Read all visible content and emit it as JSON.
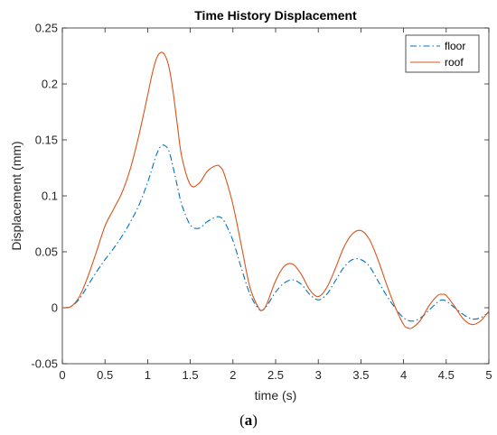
{
  "chart_data": {
    "type": "line",
    "title": "Time History Displacement",
    "xlabel": "time (s)",
    "ylabel": "Displacement (mm)",
    "xlim": [
      0,
      5
    ],
    "ylim": [
      -0.05,
      0.25
    ],
    "xticks": [
      0,
      0.5,
      1,
      1.5,
      2,
      2.5,
      3,
      3.5,
      4,
      4.5,
      5
    ],
    "xtick_labels": [
      "0",
      "0.5",
      "1",
      "1.5",
      "2",
      "2.5",
      "3",
      "3.5",
      "4",
      "4.5",
      "5"
    ],
    "yticks": [
      -0.05,
      0,
      0.05,
      0.1,
      0.15,
      0.2,
      0.25
    ],
    "ytick_labels": [
      "-0.05",
      "0",
      "0.05",
      "0.1",
      "0.15",
      "0.2",
      "0.25"
    ],
    "grid": false,
    "legend_position": "top-right",
    "series": [
      {
        "name": "floor",
        "color": "#0072BD",
        "dash": "dash-dot",
        "x": [
          0,
          0.1,
          0.2,
          0.3,
          0.4,
          0.5,
          0.6,
          0.7,
          0.8,
          0.9,
          1.0,
          1.05,
          1.1,
          1.15,
          1.2,
          1.25,
          1.3,
          1.35,
          1.4,
          1.5,
          1.6,
          1.7,
          1.8,
          1.85,
          1.9,
          2.0,
          2.1,
          2.2,
          2.3,
          2.35,
          2.4,
          2.5,
          2.6,
          2.7,
          2.8,
          2.9,
          3.0,
          3.1,
          3.2,
          3.3,
          3.4,
          3.5,
          3.6,
          3.7,
          3.8,
          3.9,
          4.0,
          4.1,
          4.2,
          4.3,
          4.4,
          4.45,
          4.5,
          4.6,
          4.7,
          4.8,
          4.9,
          5.0
        ],
        "y": [
          0,
          0.001,
          0.008,
          0.02,
          0.032,
          0.043,
          0.053,
          0.064,
          0.077,
          0.092,
          0.112,
          0.124,
          0.136,
          0.144,
          0.145,
          0.14,
          0.125,
          0.108,
          0.092,
          0.074,
          0.071,
          0.077,
          0.081,
          0.081,
          0.077,
          0.06,
          0.035,
          0.012,
          -0.001,
          -0.002,
          0.002,
          0.014,
          0.022,
          0.025,
          0.021,
          0.012,
          0.007,
          0.012,
          0.024,
          0.036,
          0.043,
          0.043,
          0.037,
          0.024,
          0.011,
          0.0,
          -0.009,
          -0.012,
          -0.009,
          -0.002,
          0.005,
          0.007,
          0.006,
          0.0,
          -0.006,
          -0.01,
          -0.009,
          -0.004
        ]
      },
      {
        "name": "roof",
        "color": "#D95319",
        "dash": "solid",
        "x": [
          0,
          0.1,
          0.2,
          0.3,
          0.4,
          0.5,
          0.6,
          0.7,
          0.8,
          0.9,
          1.0,
          1.05,
          1.1,
          1.15,
          1.2,
          1.25,
          1.3,
          1.35,
          1.4,
          1.5,
          1.6,
          1.7,
          1.8,
          1.85,
          1.9,
          2.0,
          2.1,
          2.2,
          2.3,
          2.35,
          2.4,
          2.5,
          2.6,
          2.7,
          2.8,
          2.9,
          3.0,
          3.1,
          3.2,
          3.3,
          3.4,
          3.5,
          3.6,
          3.7,
          3.8,
          3.9,
          4.0,
          4.05,
          4.1,
          4.2,
          4.3,
          4.4,
          4.45,
          4.5,
          4.6,
          4.7,
          4.8,
          4.9,
          5.0
        ],
        "y": [
          0,
          0.001,
          0.01,
          0.028,
          0.05,
          0.073,
          0.088,
          0.103,
          0.125,
          0.155,
          0.19,
          0.208,
          0.222,
          0.228,
          0.226,
          0.215,
          0.192,
          0.162,
          0.135,
          0.11,
          0.111,
          0.122,
          0.127,
          0.126,
          0.119,
          0.092,
          0.055,
          0.018,
          0.0,
          -0.002,
          0.004,
          0.024,
          0.037,
          0.039,
          0.03,
          0.016,
          0.01,
          0.018,
          0.035,
          0.054,
          0.066,
          0.069,
          0.061,
          0.043,
          0.021,
          0.001,
          -0.015,
          -0.018,
          -0.018,
          -0.011,
          0.002,
          0.011,
          0.012,
          0.011,
          0.001,
          -0.01,
          -0.015,
          -0.012,
          -0.003
        ]
      }
    ]
  },
  "caption": {
    "open": "(",
    "letter": "a",
    "close": ")"
  }
}
